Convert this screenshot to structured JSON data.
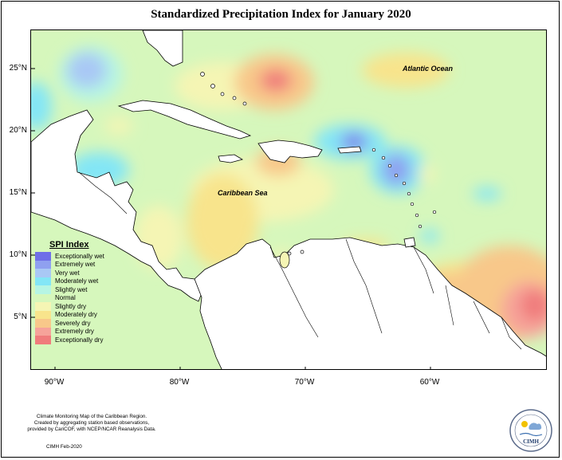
{
  "title": "Standardized Precipitation Index for January 2020",
  "latitude_labels": [
    "25°N",
    "20°N",
    "15°N",
    "10°N",
    "5°N"
  ],
  "longitude_labels": [
    "90°W",
    "80°W",
    "70°W",
    "60°W"
  ],
  "map_labels": {
    "atlantic": "Atlantic Ocean",
    "caribbean": "Caribbean Sea"
  },
  "legend": {
    "title": "SPI Index",
    "items": [
      {
        "label": "Exceptionally wet",
        "color": "#6f6fe8"
      },
      {
        "label": "Extremely wet",
        "color": "#8fa0f0"
      },
      {
        "label": "Very wet",
        "color": "#a9c8f5"
      },
      {
        "label": "Moderately wet",
        "color": "#83e6f6"
      },
      {
        "label": "Slightly wet",
        "color": "#b6f5e4"
      },
      {
        "label": "Normal",
        "color": "#d6f7bc"
      },
      {
        "label": "Slightly dry",
        "color": "#f5f5b4"
      },
      {
        "label": "Moderately dry",
        "color": "#f8e48c"
      },
      {
        "label": "Severely dry",
        "color": "#f8c88a"
      },
      {
        "label": "Extremely dry",
        "color": "#f6a39a"
      },
      {
        "label": "Exceptionally dry",
        "color": "#f07c7c"
      }
    ]
  },
  "footer": {
    "lines": [
      "Climate Monitoring Map of the Caribbean Region.",
      "Created by aggregating station based observations,",
      "provided by CariCOF, with NCEP/NCAR Reanalysis Data."
    ],
    "credit": "CIMH Feb-2020",
    "logo_text": "CIMH"
  }
}
